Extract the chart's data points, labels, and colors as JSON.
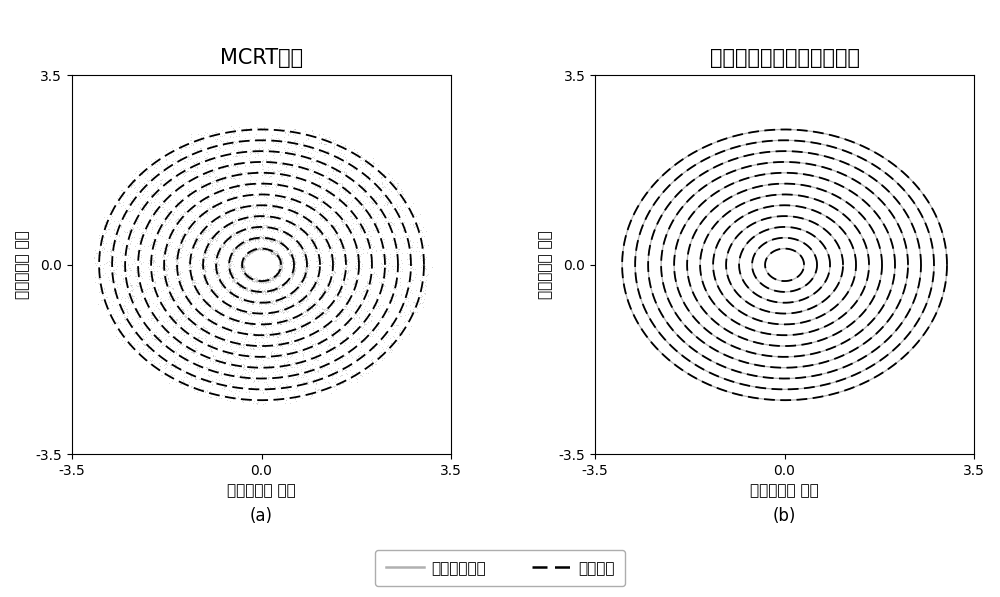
{
  "title_a": "MCRT结果",
  "title_b": "增加截尾滤波处理后的结果",
  "xlabel": "宽（单位：米）",
  "ylabel": "矩（单位：米）",
  "xlabel_plain": "宽（单位： 米）",
  "ylabel_plain": "矩（单位： 米）",
  "xlim": [
    -3.5,
    3.5
  ],
  "ylim": [
    -3.5,
    3.5
  ],
  "xticks": [
    -3.5,
    0.0,
    3.5
  ],
  "yticks": [
    -3.5,
    0.0,
    3.5
  ],
  "label_a": "(a)",
  "label_b": "(b)",
  "legend_ray": "光线跟踪结果",
  "legend_true": "真值结果",
  "n_ellipses": 12,
  "x_max": 3.0,
  "y_max": 2.5,
  "ray_color": "#b0b0b0",
  "true_color": "#000000",
  "bg_color": "#ffffff",
  "title_fontsize": 15,
  "label_fontsize": 11,
  "tick_fontsize": 10,
  "legend_fontsize": 11,
  "noise_amount": 800,
  "noise_sigma": 0.055
}
